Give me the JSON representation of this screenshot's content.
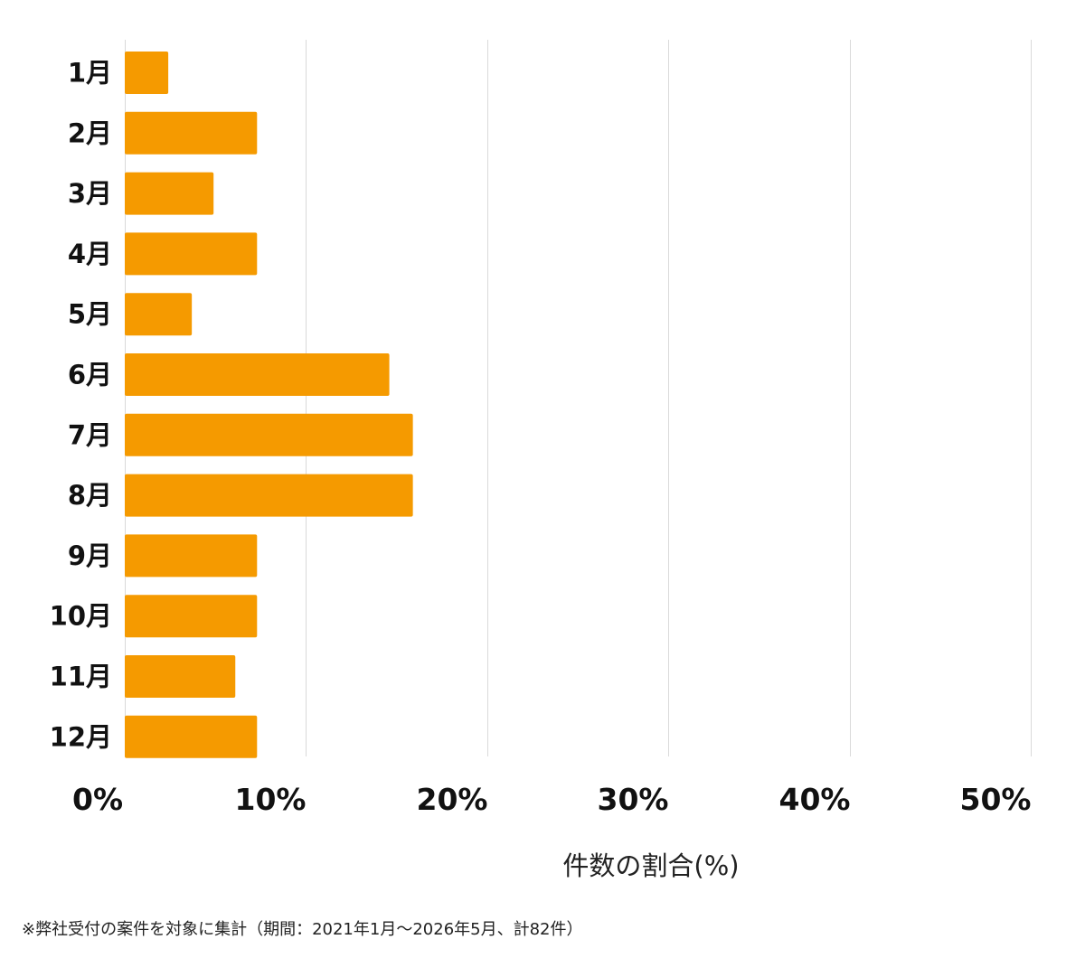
{
  "chart_data": {
    "type": "bar",
    "orientation": "horizontal",
    "categories": [
      "1月",
      "2月",
      "3月",
      "4月",
      "5月",
      "6月",
      "7月",
      "8月",
      "9月",
      "10月",
      "11月",
      "12月"
    ],
    "values": [
      2.4,
      7.3,
      4.9,
      7.3,
      3.7,
      14.6,
      15.9,
      15.9,
      7.3,
      7.3,
      6.1,
      7.3
    ],
    "xlim": [
      0,
      50
    ],
    "xticks": [
      0,
      10,
      20,
      30,
      40,
      50
    ],
    "xtick_labels": [
      "0%",
      "10%",
      "20%",
      "30%",
      "40%",
      "50%"
    ],
    "xlabel": "件数の割合(%)",
    "ylabel": "",
    "title": "",
    "grid": "vertical",
    "bar_color": "#F59A00"
  },
  "footnote": "※弊社受付の案件を対象に集計（期間：2021年1月〜2026年5月、計82件）"
}
